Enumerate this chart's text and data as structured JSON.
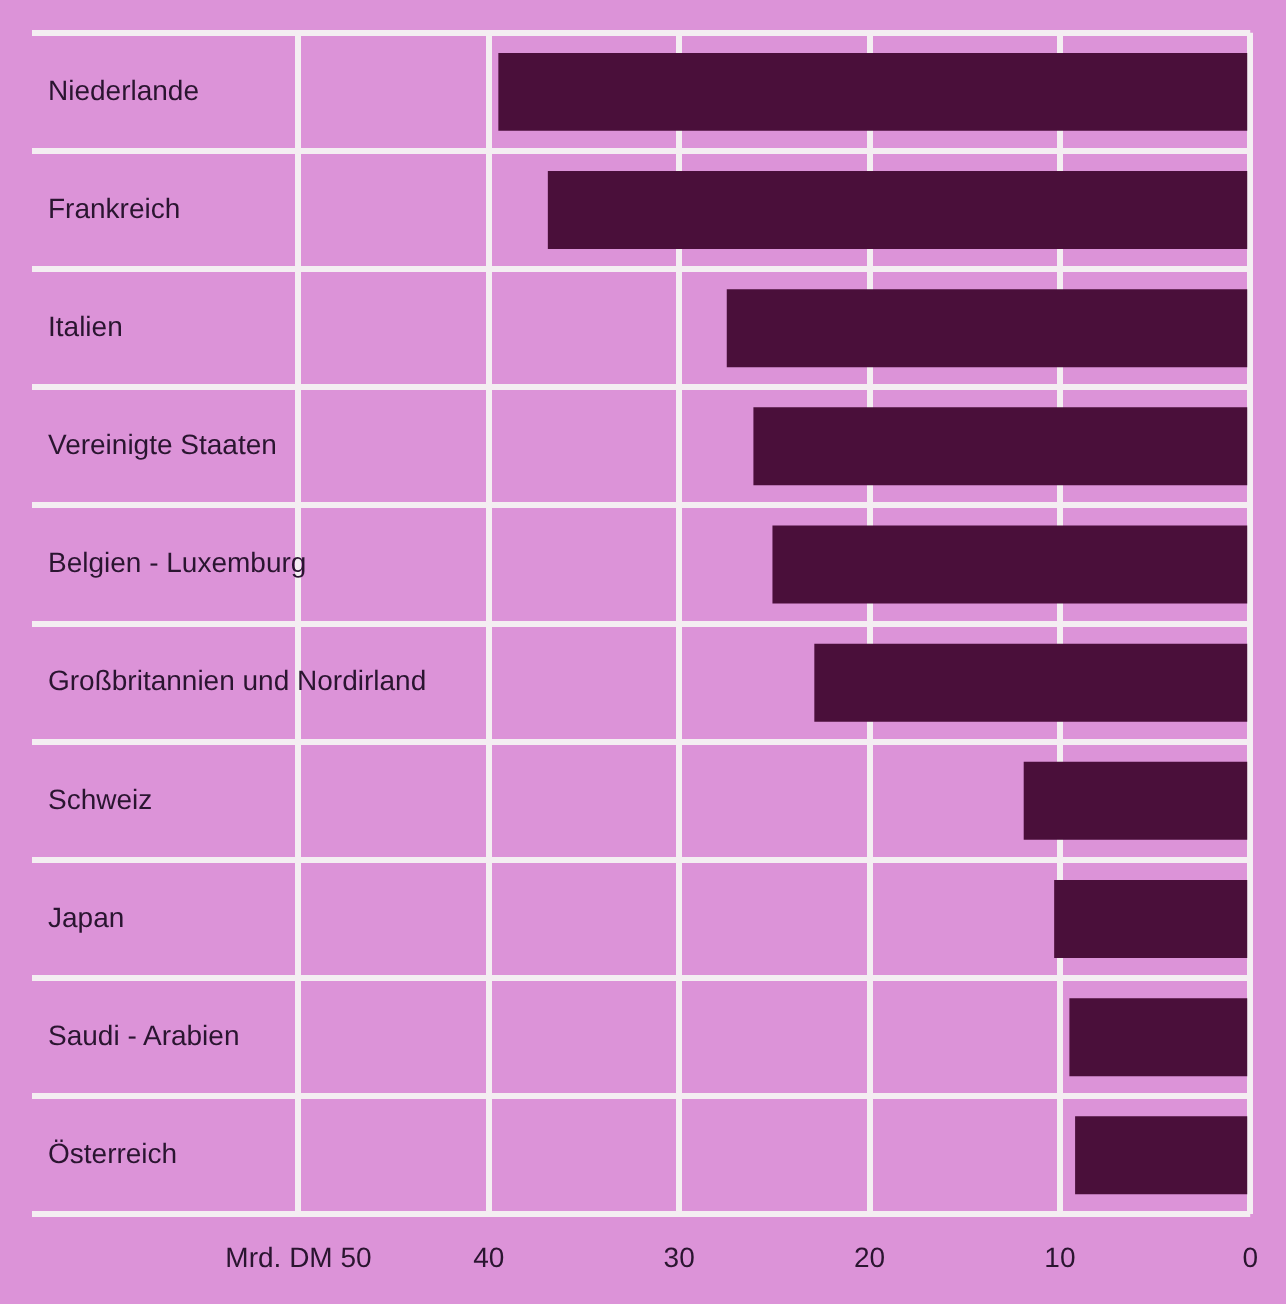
{
  "chart_data": {
    "type": "bar",
    "orientation": "horizontal",
    "categories": [
      "Niederlande",
      "Frankreich",
      "Italien",
      "Vereinigte Staaten",
      "Belgien - Luxemburg",
      "Großbritannien und Nordirland",
      "Schweiz",
      "Japan",
      "Saudi - Arabien",
      "Österreich"
    ],
    "values": [
      39.5,
      36.9,
      27.5,
      26.1,
      25.1,
      22.9,
      11.9,
      10.3,
      9.5,
      9.2
    ],
    "color": "#4a0f3a",
    "xlim": [
      64,
      0
    ],
    "xticks": [
      {
        "value": 50,
        "label": "Mrd. DM 50"
      },
      40,
      30,
      20,
      10,
      0
    ],
    "grid": true
  }
}
